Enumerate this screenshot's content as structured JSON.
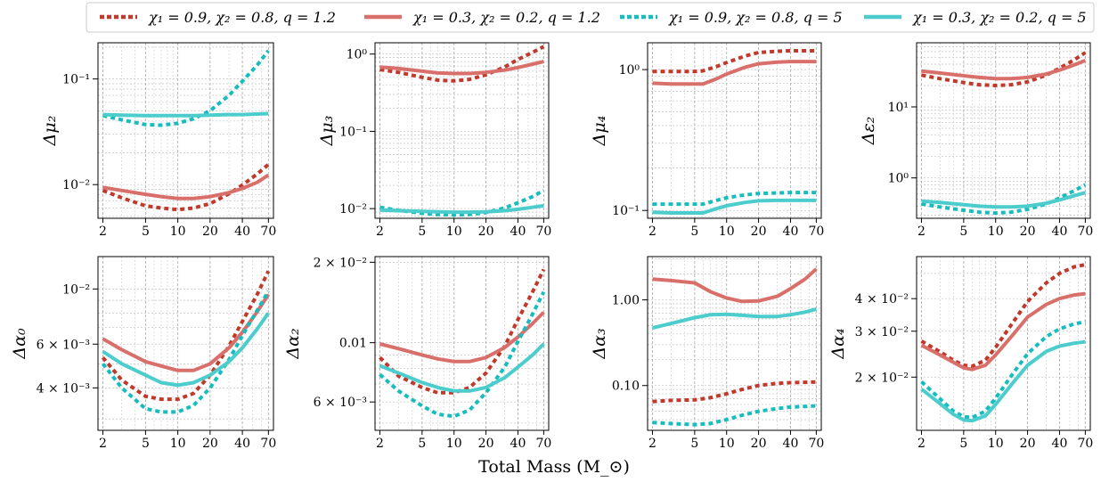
{
  "figure": {
    "xlabel": "Total Mass (M_⊙)",
    "legend": [
      {
        "label": "χ₁ = 0.9, χ₂ = 0.8, q = 1.2",
        "color": "#c0392b",
        "dash": true
      },
      {
        "label": "χ₁ = 0.3, χ₂ = 0.2, q = 1.2",
        "color": "#d96f6a",
        "dash": false
      },
      {
        "label": "χ₁ = 0.9, χ₂ = 0.8, q = 5",
        "color": "#17bdbd",
        "dash": true
      },
      {
        "label": "χ₁ = 0.3, χ₂ = 0.2, q = 5",
        "color": "#4ccccc",
        "dash": false
      }
    ]
  },
  "chart_data": [
    {
      "type": "line",
      "ylabel": "Δμ₂",
      "xscale": "log",
      "yscale": "log",
      "xlim": [
        1.8,
        78
      ],
      "ylim": [
        0.0048,
        0.22
      ],
      "xticks": [
        2,
        5,
        10,
        20,
        40,
        70
      ],
      "xticklabels": [
        "2",
        "5",
        "10",
        "20",
        "40",
        "70"
      ],
      "yticks": [
        0.1,
        0.01
      ],
      "yticklabels": [
        "10⁻¹",
        "10⁻²"
      ],
      "x": [
        2,
        3,
        5,
        7,
        10,
        14,
        20,
        30,
        40,
        55,
        70
      ],
      "series": [
        {
          "values": [
            0.0088,
            0.0075,
            0.0063,
            0.006,
            0.0058,
            0.006,
            0.0066,
            0.0082,
            0.0099,
            0.0126,
            0.0155
          ]
        },
        {
          "values": [
            0.0094,
            0.0088,
            0.0081,
            0.0077,
            0.0074,
            0.0074,
            0.0077,
            0.0084,
            0.0092,
            0.0105,
            0.0123
          ]
        },
        {
          "values": [
            0.045,
            0.041,
            0.037,
            0.0365,
            0.038,
            0.042,
            0.05,
            0.07,
            0.095,
            0.135,
            0.185
          ]
        },
        {
          "values": [
            0.046,
            0.0455,
            0.045,
            0.045,
            0.045,
            0.045,
            0.0455,
            0.046,
            0.046,
            0.0465,
            0.047
          ]
        }
      ]
    },
    {
      "type": "line",
      "ylabel": "Δμ₃",
      "xscale": "log",
      "yscale": "log",
      "xlim": [
        1.8,
        78
      ],
      "ylim": [
        0.0075,
        1.4
      ],
      "xticks": [
        2,
        5,
        10,
        20,
        40,
        70
      ],
      "xticklabels": [
        "2",
        "5",
        "10",
        "20",
        "40",
        "70"
      ],
      "yticks": [
        1,
        0.1,
        0.01
      ],
      "yticklabels": [
        "10⁰",
        "10⁻¹",
        "10⁻²"
      ],
      "x": [
        2,
        3,
        5,
        7,
        10,
        14,
        20,
        30,
        40,
        55,
        70
      ],
      "series": [
        {
          "values": [
            0.63,
            0.58,
            0.5,
            0.46,
            0.45,
            0.47,
            0.54,
            0.68,
            0.85,
            1.05,
            1.25
          ]
        },
        {
          "values": [
            0.68,
            0.65,
            0.6,
            0.57,
            0.56,
            0.56,
            0.58,
            0.62,
            0.67,
            0.74,
            0.8
          ]
        },
        {
          "values": [
            0.0104,
            0.0095,
            0.0087,
            0.0084,
            0.0083,
            0.0084,
            0.0089,
            0.0102,
            0.0119,
            0.0143,
            0.0172
          ]
        },
        {
          "values": [
            0.0096,
            0.0094,
            0.0092,
            0.0091,
            0.009,
            0.009,
            0.0091,
            0.0094,
            0.0098,
            0.0104,
            0.0109
          ]
        }
      ]
    },
    {
      "type": "line",
      "ylabel": "Δμ₄",
      "xscale": "log",
      "yscale": "log",
      "xlim": [
        1.8,
        78
      ],
      "ylim": [
        0.088,
        1.55
      ],
      "xticks": [
        2,
        5,
        10,
        20,
        40,
        70
      ],
      "xticklabels": [
        "2",
        "5",
        "10",
        "20",
        "40",
        "70"
      ],
      "yticks": [
        1,
        0.1
      ],
      "yticklabels": [
        "10⁰",
        "10⁻¹"
      ],
      "x": [
        2,
        3,
        5,
        6,
        8,
        10,
        15,
        20,
        30,
        40,
        55,
        70
      ],
      "series": [
        {
          "values": [
            0.97,
            0.97,
            0.97,
            0.98,
            1.05,
            1.12,
            1.25,
            1.32,
            1.35,
            1.36,
            1.36,
            1.36
          ]
        },
        {
          "values": [
            0.8,
            0.79,
            0.79,
            0.79,
            0.86,
            0.93,
            1.04,
            1.1,
            1.13,
            1.14,
            1.14,
            1.14
          ]
        },
        {
          "values": [
            0.111,
            0.111,
            0.111,
            0.111,
            0.118,
            0.123,
            0.129,
            0.132,
            0.133,
            0.134,
            0.134,
            0.134
          ]
        },
        {
          "values": [
            0.097,
            0.096,
            0.096,
            0.096,
            0.103,
            0.108,
            0.114,
            0.117,
            0.118,
            0.118,
            0.118,
            0.118
          ]
        }
      ]
    },
    {
      "type": "line",
      "ylabel": "Δε₂",
      "xscale": "log",
      "yscale": "log",
      "xlim": [
        1.8,
        78
      ],
      "ylim": [
        0.27,
        80
      ],
      "xticks": [
        2,
        5,
        10,
        20,
        40,
        70
      ],
      "xticklabels": [
        "2",
        "5",
        "10",
        "20",
        "40",
        "70"
      ],
      "yticks": [
        10,
        1
      ],
      "yticklabels": [
        "10¹",
        "10⁰"
      ],
      "x": [
        2,
        3,
        5,
        7,
        10,
        14,
        20,
        30,
        40,
        55,
        70
      ],
      "series": [
        {
          "values": [
            28,
            25,
            22,
            20.5,
            20,
            20.5,
            22.5,
            28,
            35,
            46,
            58
          ]
        },
        {
          "values": [
            32,
            30,
            27.5,
            26,
            25,
            25,
            26,
            29,
            33,
            39,
            45
          ]
        },
        {
          "values": [
            0.43,
            0.39,
            0.35,
            0.33,
            0.32,
            0.33,
            0.36,
            0.43,
            0.52,
            0.66,
            0.8
          ]
        },
        {
          "values": [
            0.47,
            0.45,
            0.42,
            0.4,
            0.39,
            0.39,
            0.4,
            0.44,
            0.49,
            0.56,
            0.62
          ]
        }
      ]
    },
    {
      "type": "line",
      "ylabel": "Δα₀",
      "xscale": "log",
      "yscale": "log",
      "xlim": [
        1.8,
        78
      ],
      "ylim": [
        0.0027,
        0.0135
      ],
      "xticks": [
        2,
        5,
        10,
        20,
        40,
        70
      ],
      "xticklabels": [
        "2",
        "5",
        "10",
        "20",
        "40",
        "70"
      ],
      "yticks": [
        0.01,
        0.006,
        0.004
      ],
      "yticklabels": [
        "10⁻²",
        "6 × 10⁻³",
        "4 × 10⁻³"
      ],
      "x": [
        2,
        3,
        5,
        7,
        10,
        14,
        20,
        30,
        40,
        55,
        70
      ],
      "series": [
        {
          "values": [
            0.0053,
            0.0043,
            0.0037,
            0.0036,
            0.0036,
            0.0038,
            0.0045,
            0.0059,
            0.0074,
            0.0095,
            0.0118
          ]
        },
        {
          "values": [
            0.0063,
            0.0057,
            0.0051,
            0.0049,
            0.0047,
            0.0047,
            0.005,
            0.0058,
            0.0067,
            0.0081,
            0.0095
          ]
        },
        {
          "values": [
            0.005,
            0.004,
            0.0033,
            0.0032,
            0.0032,
            0.0034,
            0.004,
            0.0052,
            0.0065,
            0.0082,
            0.0098
          ]
        },
        {
          "values": [
            0.0056,
            0.005,
            0.0045,
            0.0042,
            0.0041,
            0.0042,
            0.0045,
            0.0051,
            0.0058,
            0.0069,
            0.008
          ]
        }
      ]
    },
    {
      "type": "line",
      "ylabel": "Δα₂",
      "xscale": "log",
      "yscale": "log",
      "xlim": [
        1.8,
        78
      ],
      "ylim": [
        0.0047,
        0.021
      ],
      "xticks": [
        2,
        5,
        10,
        20,
        40,
        70
      ],
      "xticklabels": [
        "2",
        "5",
        "10",
        "20",
        "40",
        "70"
      ],
      "yticks": [
        0.02,
        0.01,
        0.006
      ],
      "yticklabels": [
        "2 × 10⁻²",
        "0.01",
        "6 × 10⁻³"
      ],
      "x": [
        2,
        3,
        5,
        7,
        10,
        14,
        20,
        30,
        40,
        55,
        70
      ],
      "series": [
        {
          "values": [
            0.0088,
            0.0075,
            0.0068,
            0.0065,
            0.0065,
            0.0068,
            0.0077,
            0.0097,
            0.0122,
            0.0155,
            0.0188
          ]
        },
        {
          "values": [
            0.0099,
            0.0095,
            0.009,
            0.0087,
            0.0085,
            0.0085,
            0.0088,
            0.0096,
            0.0105,
            0.0118,
            0.013
          ]
        },
        {
          "values": [
            0.0076,
            0.0066,
            0.0058,
            0.0054,
            0.0053,
            0.0056,
            0.0065,
            0.0081,
            0.0101,
            0.0128,
            0.0155
          ]
        },
        {
          "values": [
            0.0082,
            0.0077,
            0.0071,
            0.0068,
            0.0066,
            0.0066,
            0.0068,
            0.0074,
            0.0081,
            0.009,
            0.0099
          ]
        }
      ]
    },
    {
      "type": "line",
      "ylabel": "Δα₃",
      "xscale": "log",
      "yscale": "log",
      "xlim": [
        1.8,
        78
      ],
      "ylim": [
        0.03,
        3.2
      ],
      "xticks": [
        2,
        5,
        10,
        20,
        40,
        70
      ],
      "xticklabels": [
        "2",
        "5",
        "10",
        "20",
        "40",
        "70"
      ],
      "yticks": [
        1,
        0.1
      ],
      "yticklabels": [
        "1.00",
        "0.10"
      ],
      "x": [
        2,
        3,
        5,
        7,
        10,
        14,
        20,
        30,
        40,
        55,
        70
      ],
      "series": [
        {
          "values": [
            0.065,
            0.067,
            0.068,
            0.072,
            0.08,
            0.09,
            0.1,
            0.106,
            0.108,
            0.109,
            0.11
          ]
        },
        {
          "values": [
            1.75,
            1.68,
            1.58,
            1.25,
            1.05,
            0.96,
            0.97,
            1.1,
            1.35,
            1.75,
            2.3
          ]
        },
        {
          "values": [
            0.037,
            0.036,
            0.035,
            0.036,
            0.04,
            0.045,
            0.05,
            0.054,
            0.056,
            0.057,
            0.058
          ]
        },
        {
          "values": [
            0.47,
            0.53,
            0.62,
            0.67,
            0.68,
            0.66,
            0.64,
            0.64,
            0.67,
            0.72,
            0.78
          ]
        }
      ]
    },
    {
      "type": "line",
      "ylabel": "Δα₄",
      "xscale": "log",
      "yscale": "log",
      "xlim": [
        1.8,
        78
      ],
      "ylim": [
        0.0125,
        0.058
      ],
      "xticks": [
        2,
        5,
        10,
        20,
        40,
        70
      ],
      "xticklabels": [
        "2",
        "5",
        "10",
        "20",
        "40",
        "70"
      ],
      "yticks": [
        0.04,
        0.03,
        0.02
      ],
      "yticklabels": [
        "4 × 10⁻²",
        "3 × 10⁻²",
        "2 × 10⁻²"
      ],
      "x": [
        2,
        3,
        4,
        5,
        6,
        8,
        10,
        15,
        20,
        30,
        40,
        55,
        70
      ],
      "series": [
        {
          "values": [
            0.0275,
            0.025,
            0.0232,
            0.0222,
            0.022,
            0.0232,
            0.026,
            0.033,
            0.039,
            0.046,
            0.05,
            0.053,
            0.054
          ]
        },
        {
          "values": [
            0.0265,
            0.0243,
            0.0228,
            0.0217,
            0.0214,
            0.0222,
            0.0243,
            0.0295,
            0.034,
            0.038,
            0.04,
            0.0413,
            0.0418
          ]
        },
        {
          "values": [
            0.0192,
            0.0165,
            0.0148,
            0.0141,
            0.014,
            0.0148,
            0.0166,
            0.021,
            0.0246,
            0.0286,
            0.0306,
            0.032,
            0.0326
          ]
        },
        {
          "values": [
            0.018,
            0.0158,
            0.0144,
            0.0137,
            0.0136,
            0.0142,
            0.0157,
            0.0193,
            0.0222,
            0.0251,
            0.0263,
            0.027,
            0.0273
          ]
        }
      ]
    }
  ]
}
